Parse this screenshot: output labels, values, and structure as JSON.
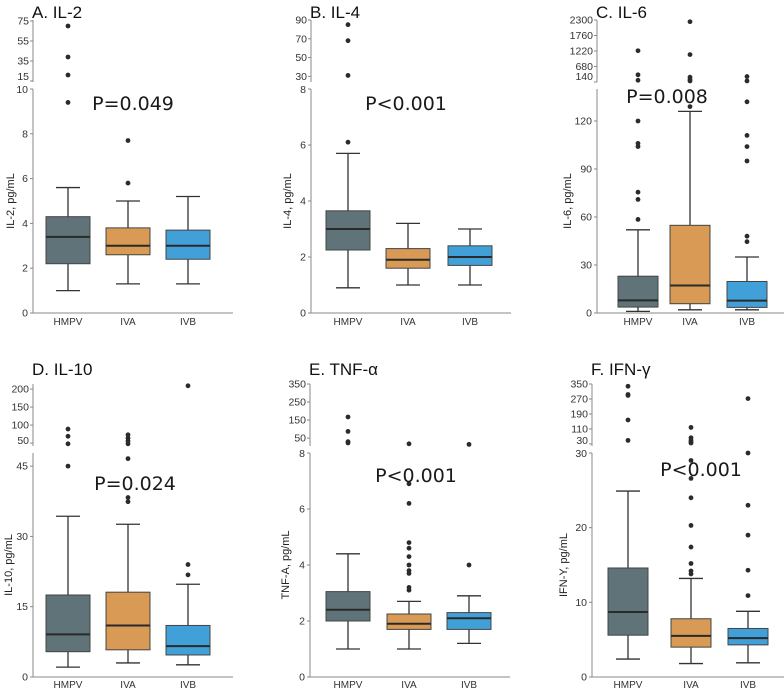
{
  "chart_data": [
    {
      "type": "box",
      "title": "A. IL-2",
      "ylabel": "IL-2, pg/mL",
      "pvalue": "P=0.049",
      "categories": [
        "HMPV",
        "IVA",
        "IVB"
      ],
      "colors": [
        "#5f7378",
        "#d89a55",
        "#42a0d8"
      ],
      "upper_axis": {
        "range": [
          14,
          76
        ],
        "ticks": [
          15,
          35,
          55,
          75
        ]
      },
      "lower_axis": {
        "range": [
          0,
          10
        ],
        "ticks": [
          0,
          2,
          4,
          6,
          8,
          10
        ]
      },
      "boxes": [
        {
          "min": 1.0,
          "q1": 2.2,
          "median": 3.4,
          "q3": 4.3,
          "max": 5.6,
          "outliers": [
            9.4,
            21,
            39,
            70
          ]
        },
        {
          "min": 1.3,
          "q1": 2.6,
          "median": 3.0,
          "q3": 3.8,
          "max": 5.0,
          "outliers": [
            5.8,
            7.7
          ]
        },
        {
          "min": 1.3,
          "q1": 2.4,
          "median": 3.0,
          "q3": 3.7,
          "max": 5.2,
          "outliers": []
        }
      ]
    },
    {
      "type": "box",
      "title": "B. IL-4",
      "ylabel": "IL-4, pg/mL",
      "pvalue": "P<0.001",
      "categories": [
        "HMPV",
        "IVA",
        "IVB"
      ],
      "colors": [
        "#5f7378",
        "#d89a55",
        "#42a0d8"
      ],
      "upper_axis": {
        "range": [
          24,
          90
        ],
        "ticks": [
          30,
          50,
          70,
          90
        ]
      },
      "lower_axis": {
        "range": [
          0,
          8
        ],
        "ticks": [
          0,
          2,
          4,
          6,
          8
        ]
      },
      "boxes": [
        {
          "min": 0.9,
          "q1": 2.25,
          "median": 3.0,
          "q3": 3.65,
          "max": 5.7,
          "outliers": [
            6.1,
            31,
            68,
            85
          ]
        },
        {
          "min": 1.0,
          "q1": 1.6,
          "median": 1.9,
          "q3": 2.3,
          "max": 3.2,
          "outliers": []
        },
        {
          "min": 1.0,
          "q1": 1.7,
          "median": 2.0,
          "q3": 2.4,
          "max": 3.0,
          "outliers": []
        }
      ]
    },
    {
      "type": "box",
      "title": "C. IL-6",
      "ylabel": "IL-6, pg/mL",
      "pvalue": "P=0.008",
      "categories": [
        "HMPV",
        "IVA",
        "IVB"
      ],
      "colors": [
        "#5f7378",
        "#d89a55",
        "#42a0d8"
      ],
      "upper_axis": {
        "range": [
          140,
          2300
        ],
        "ticks": [
          140,
          680,
          1220,
          1760,
          2300
        ]
      },
      "lower_axis": {
        "range": [
          0,
          140
        ],
        "ticks": [
          0,
          30,
          60,
          90,
          120
        ]
      },
      "boxes": [
        {
          "min": 1,
          "q1": 3.7,
          "median": 7.9,
          "q3": 23,
          "max": 52,
          "outliers": [
            58.5,
            71,
            75.5,
            104,
            106,
            120,
            200,
            390,
            1230
          ]
        },
        {
          "min": 2,
          "q1": 5.8,
          "median": 17.2,
          "q3": 54.8,
          "max": 126,
          "outliers": [
            129,
            176,
            224,
            307,
            1095,
            2240
          ]
        },
        {
          "min": 2,
          "q1": 3.5,
          "median": 7.7,
          "q3": 19.7,
          "max": 35,
          "outliers": [
            44.6,
            48,
            95,
            104,
            111,
            132,
            176,
            330
          ]
        }
      ]
    },
    {
      "type": "box",
      "title": "D. IL-10",
      "ylabel": "IL-10, pg/mL",
      "pvalue": "P=0.024",
      "categories": [
        "HMPV",
        "IVA",
        "IVB"
      ],
      "colors": [
        "#5f7378",
        "#d89a55",
        "#42a0d8"
      ],
      "upper_axis": {
        "range": [
          42,
          214
        ],
        "ticks": [
          50,
          100,
          150,
          200
        ]
      },
      "lower_axis": {
        "range": [
          0,
          47.8
        ],
        "ticks": [
          0,
          15,
          30,
          45
        ]
      },
      "boxes": [
        {
          "min": 2.1,
          "q1": 5.4,
          "median": 9.1,
          "q3": 17.5,
          "max": 34.3,
          "outliers": [
            45,
            48,
            69,
            89
          ]
        },
        {
          "min": 3.0,
          "q1": 5.8,
          "median": 11,
          "q3": 18.1,
          "max": 32.6,
          "outliers": [
            37.4,
            38.3,
            46.6,
            48,
            56,
            64,
            73
          ]
        },
        {
          "min": 2.6,
          "q1": 4.7,
          "median": 6.6,
          "q3": 11,
          "max": 19.8,
          "outliers": [
            21.8,
            24,
            209
          ]
        }
      ]
    },
    {
      "type": "box",
      "title": "E. TNF-α",
      "ylabel": "TNF-A, pg/mL",
      "pvalue": "P<0.001",
      "categories": [
        "HMPV",
        "IVA",
        "IVB"
      ],
      "colors": [
        "#5f7378",
        "#d89a55",
        "#42a0d8"
      ],
      "upper_axis": {
        "range": [
          6,
          350
        ],
        "ticks": [
          50,
          150,
          250,
          350
        ]
      },
      "lower_axis": {
        "range": [
          0,
          8
        ],
        "ticks": [
          0,
          2,
          4,
          6,
          8
        ]
      },
      "boxes": [
        {
          "min": 1.0,
          "q1": 2.0,
          "median": 2.4,
          "q3": 3.05,
          "max": 4.4,
          "outliers": [
            23,
            30,
            87,
            167
          ]
        },
        {
          "min": 1.0,
          "q1": 1.7,
          "median": 1.9,
          "q3": 2.25,
          "max": 2.7,
          "outliers": [
            3.1,
            3.2,
            3.7,
            3.8,
            4.0,
            4.3,
            4.6,
            4.8,
            6.2,
            6.9,
            18
          ]
        },
        {
          "min": 1.2,
          "q1": 1.7,
          "median": 2.1,
          "q3": 2.3,
          "max": 2.9,
          "outliers": [
            4.0,
            15
          ]
        }
      ]
    },
    {
      "type": "box",
      "title": "F. IFN-γ",
      "ylabel": "IFN-Y, pg/mL",
      "pvalue": "P<0.001",
      "categories": [
        "HMPV",
        "IVA",
        "IVB"
      ],
      "colors": [
        "#5f7378",
        "#d89a55",
        "#42a0d8"
      ],
      "upper_axis": {
        "range": [
          19,
          350
        ],
        "ticks": [
          30,
          110,
          190,
          270,
          350
        ]
      },
      "lower_axis": {
        "range": [
          0,
          30
        ],
        "ticks": [
          0,
          10,
          20,
          30
        ]
      },
      "boxes": [
        {
          "min": 2.4,
          "q1": 5.6,
          "median": 8.7,
          "q3": 14.6,
          "max": 24.9,
          "outliers": [
            49,
            158,
            289,
            294,
            338
          ]
        },
        {
          "min": 1.8,
          "q1": 4.0,
          "median": 5.5,
          "q3": 7.8,
          "max": 13.2,
          "outliers": [
            13.8,
            14.2,
            15.2,
            17.4,
            20.3,
            24,
            26.6,
            29,
            35,
            40,
            49,
            63,
            118
          ]
        },
        {
          "min": 1.9,
          "q1": 4.3,
          "median": 5.2,
          "q3": 6.5,
          "max": 8.8,
          "outliers": [
            10.9,
            14.3,
            19,
            23,
            30,
            272
          ]
        }
      ]
    }
  ]
}
